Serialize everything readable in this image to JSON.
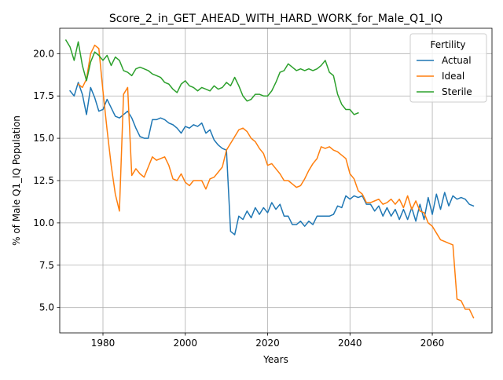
{
  "chart_data": {
    "type": "line",
    "title": "Score_2_in_GET_AHEAD_WITH_HARD_WORK_for_Male_Q1_IQ",
    "xlabel": "Years",
    "ylabel": "% of Male Q1_IQ Population",
    "xlim": [
      1969.5,
      2074.5
    ],
    "ylim": [
      3.5,
      21.5
    ],
    "xticks": [
      1980,
      2000,
      2020,
      2040,
      2060
    ],
    "yticks": [
      5.0,
      7.5,
      10.0,
      12.5,
      15.0,
      17.5,
      20.0
    ],
    "xtick_labels": [
      "1980",
      "2000",
      "2020",
      "2040",
      "2060"
    ],
    "ytick_labels": [
      "5.0",
      "7.5",
      "10.0",
      "12.5",
      "15.0",
      "17.5",
      "20.0"
    ],
    "grid": true,
    "legend": {
      "title": "Fertility",
      "placement": "top-right",
      "entries": [
        "Actual",
        "Ideal",
        "Sterile"
      ]
    },
    "series": [
      {
        "name": "Actual",
        "color": "#1f77b4",
        "x": [
          1972,
          1973,
          1974,
          1975,
          1976,
          1977,
          1978,
          1979,
          1980,
          1981,
          1982,
          1983,
          1984,
          1985,
          1986,
          1987,
          1988,
          1989,
          1990,
          1991,
          1992,
          1993,
          1994,
          1995,
          1996,
          1997,
          1998,
          1999,
          2000,
          2001,
          2002,
          2003,
          2004,
          2005,
          2006,
          2007,
          2008,
          2009,
          2010,
          2011,
          2012,
          2013,
          2014,
          2015,
          2016,
          2017,
          2018,
          2019,
          2020,
          2021,
          2022,
          2023,
          2024,
          2025,
          2026,
          2027,
          2028,
          2029,
          2030,
          2031,
          2032,
          2033,
          2034,
          2035,
          2036,
          2037,
          2038,
          2039,
          2040,
          2041,
          2042,
          2043,
          2044,
          2045,
          2046,
          2047,
          2048,
          2049,
          2050,
          2051,
          2052,
          2053,
          2054,
          2055,
          2056,
          2057,
          2058,
          2059,
          2060,
          2061,
          2062,
          2063,
          2064,
          2065,
          2066,
          2067,
          2068,
          2069,
          2070
        ],
        "values": [
          17.8,
          17.5,
          18.3,
          17.6,
          16.4,
          18.0,
          17.4,
          16.6,
          16.7,
          17.3,
          16.8,
          16.3,
          16.2,
          16.4,
          16.6,
          16.2,
          15.6,
          15.1,
          15.0,
          15.0,
          16.1,
          16.1,
          16.2,
          16.1,
          15.9,
          15.8,
          15.6,
          15.3,
          15.7,
          15.6,
          15.8,
          15.7,
          15.9,
          15.3,
          15.5,
          14.9,
          14.6,
          14.4,
          14.3,
          9.5,
          9.3,
          10.4,
          10.2,
          10.7,
          10.3,
          10.9,
          10.5,
          10.9,
          10.6,
          11.2,
          10.8,
          11.1,
          10.4,
          10.4,
          9.9,
          9.9,
          10.1,
          9.8,
          10.1,
          9.9,
          10.4,
          10.4,
          10.4,
          10.4,
          10.5,
          11.0,
          10.9,
          11.6,
          11.4,
          11.6,
          11.5,
          11.6,
          11.1,
          11.1,
          10.7,
          11.0,
          10.4,
          10.9,
          10.4,
          10.8,
          10.2,
          10.8,
          10.2,
          10.9,
          10.1,
          11.1,
          10.2,
          11.5,
          10.5,
          11.7,
          10.8,
          11.8,
          11.0,
          11.6,
          11.4,
          11.5,
          11.4,
          11.1,
          11.0
        ]
      },
      {
        "name": "Ideal",
        "color": "#ff7f0e",
        "x": [
          1974,
          1975,
          1976,
          1977,
          1978,
          1979,
          1980,
          1981,
          1982,
          1983,
          1984,
          1985,
          1986,
          1987,
          1988,
          1989,
          1990,
          1991,
          1992,
          1993,
          1994,
          1995,
          1996,
          1997,
          1998,
          1999,
          2000,
          2001,
          2002,
          2003,
          2004,
          2005,
          2006,
          2007,
          2008,
          2009,
          2010,
          2011,
          2012,
          2013,
          2014,
          2015,
          2016,
          2017,
          2018,
          2019,
          2020,
          2021,
          2022,
          2023,
          2024,
          2025,
          2026,
          2027,
          2028,
          2029,
          2030,
          2031,
          2032,
          2033,
          2034,
          2035,
          2036,
          2037,
          2038,
          2039,
          2040,
          2041,
          2042,
          2043,
          2044,
          2045,
          2046,
          2047,
          2048,
          2049,
          2050,
          2051,
          2052,
          2053,
          2054,
          2055,
          2056,
          2057,
          2058,
          2059,
          2060,
          2061,
          2062,
          2063,
          2064,
          2065,
          2066,
          2067,
          2068,
          2069,
          2070
        ],
        "values": [
          18.2,
          18.0,
          18.5,
          20.0,
          20.5,
          20.3,
          17.8,
          15.5,
          13.4,
          11.7,
          10.7,
          17.6,
          18.0,
          12.8,
          13.2,
          12.9,
          12.7,
          13.3,
          13.9,
          13.7,
          13.8,
          13.9,
          13.4,
          12.6,
          12.5,
          12.9,
          12.4,
          12.2,
          12.5,
          12.5,
          12.5,
          12.0,
          12.6,
          12.7,
          13.0,
          13.3,
          14.3,
          14.7,
          15.1,
          15.5,
          15.6,
          15.4,
          15.0,
          14.8,
          14.4,
          14.1,
          13.4,
          13.5,
          13.2,
          12.9,
          12.5,
          12.5,
          12.3,
          12.1,
          12.2,
          12.6,
          13.1,
          13.5,
          13.8,
          14.5,
          14.4,
          14.5,
          14.3,
          14.2,
          14.0,
          13.8,
          12.9,
          12.6,
          11.9,
          11.7,
          11.2,
          11.2,
          11.3,
          11.4,
          11.1,
          11.2,
          11.4,
          11.1,
          11.4,
          10.9,
          11.6,
          10.8,
          11.3,
          10.7,
          10.6,
          10.0,
          9.8,
          9.4,
          9.0,
          8.9,
          8.8,
          8.7,
          5.5,
          5.4,
          4.9,
          4.9,
          4.4
        ]
      },
      {
        "name": "Sterile",
        "color": "#2ca02c",
        "x": [
          1971,
          1972,
          1973,
          1974,
          1975,
          1976,
          1977,
          1978,
          1979,
          1980,
          1981,
          1982,
          1983,
          1984,
          1985,
          1986,
          1987,
          1988,
          1989,
          1990,
          1991,
          1992,
          1993,
          1994,
          1995,
          1996,
          1997,
          1998,
          1999,
          2000,
          2001,
          2002,
          2003,
          2004,
          2005,
          2006,
          2007,
          2008,
          2009,
          2010,
          2011,
          2012,
          2013,
          2014,
          2015,
          2016,
          2017,
          2018,
          2019,
          2020,
          2021,
          2022,
          2023,
          2024,
          2025,
          2026,
          2027,
          2028,
          2029,
          2030,
          2031,
          2032,
          2033,
          2034,
          2035,
          2036,
          2037,
          2038,
          2039,
          2040,
          2041,
          2042
        ],
        "values": [
          20.8,
          20.4,
          19.6,
          20.7,
          19.3,
          18.4,
          19.5,
          20.1,
          19.9,
          19.6,
          19.9,
          19.3,
          19.8,
          19.6,
          19.0,
          18.9,
          18.7,
          19.1,
          19.2,
          19.1,
          19.0,
          18.8,
          18.7,
          18.6,
          18.3,
          18.2,
          17.9,
          17.7,
          18.2,
          18.4,
          18.1,
          18.0,
          17.8,
          18.0,
          17.9,
          17.8,
          18.1,
          17.9,
          18.0,
          18.3,
          18.1,
          18.6,
          18.1,
          17.5,
          17.2,
          17.3,
          17.6,
          17.6,
          17.5,
          17.5,
          17.8,
          18.3,
          18.9,
          19.0,
          19.4,
          19.2,
          19.0,
          19.1,
          19.0,
          19.1,
          19.0,
          19.1,
          19.3,
          19.6,
          18.9,
          18.7,
          17.6,
          17.0,
          16.7,
          16.7,
          16.4,
          16.5
        ]
      }
    ]
  }
}
